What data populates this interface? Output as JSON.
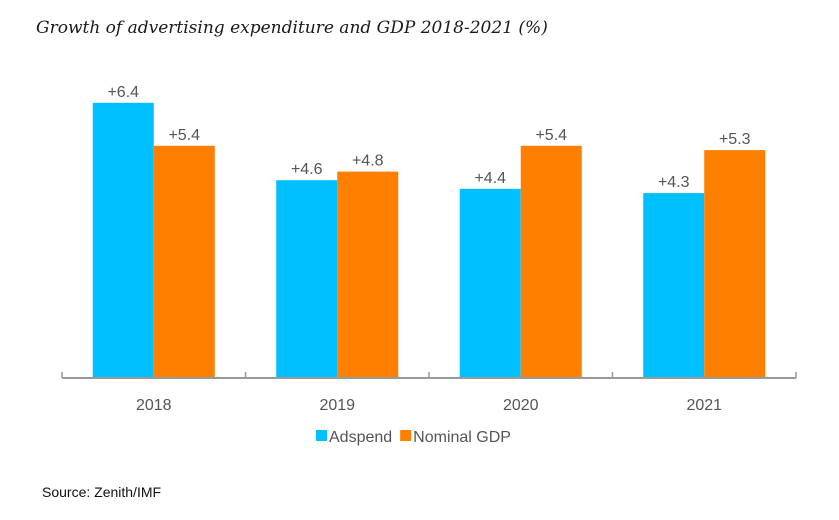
{
  "chart_data": {
    "type": "bar",
    "title": "Growth of advertising expenditure and GDP 2018-2021 (%)",
    "xlabel": "",
    "ylabel": "",
    "categories": [
      "2018",
      "2019",
      "2020",
      "2021"
    ],
    "series": [
      {
        "name": "Adspend",
        "color": "#00C0FF",
        "values": [
          6.4,
          4.6,
          4.4,
          4.3
        ],
        "labels": [
          "+6.4",
          "+4.6",
          "+4.4",
          "+4.3"
        ]
      },
      {
        "name": "Nominal GDP",
        "color": "#FF7F00",
        "values": [
          5.4,
          4.8,
          5.4,
          5.3
        ],
        "labels": [
          "+5.4",
          "+4.8",
          "+5.4",
          "+5.3"
        ]
      }
    ],
    "ylim": [
      0,
      6.4
    ],
    "grid": false,
    "legend": "bottom-center",
    "source": "Source: Zenith/IMF"
  }
}
